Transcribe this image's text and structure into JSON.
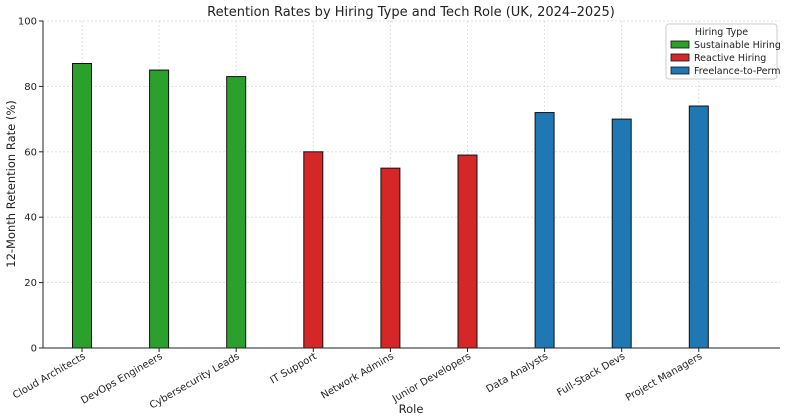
{
  "chart_data": {
    "type": "bar",
    "title": "Retention Rates by Hiring Type and Tech Role (UK, 2024–2025)",
    "xlabel": "Role",
    "ylabel": "12-Month Retention Rate (%)",
    "ylim": [
      0,
      100
    ],
    "yticks": [
      0,
      20,
      40,
      60,
      80,
      100
    ],
    "grid": true,
    "categories": [
      "Cloud Architects",
      "DevOps Engineers",
      "Cybersecurity Leads",
      "IT Support",
      "Network Admins",
      "Junior Developers",
      "Data Analysts",
      "Full-Stack Devs",
      "Project Managers"
    ],
    "legend": {
      "title": "Hiring Type",
      "position": "top-right"
    },
    "series": [
      {
        "name": "Sustainable Hiring",
        "color": "#2ca02c",
        "values": [
          87,
          85,
          83,
          null,
          null,
          null,
          null,
          null,
          null
        ]
      },
      {
        "name": "Reactive Hiring",
        "color": "#d62728",
        "values": [
          null,
          null,
          null,
          60,
          55,
          59,
          null,
          null,
          null
        ]
      },
      {
        "name": "Freelance-to-Perm",
        "color": "#1f77b4",
        "values": [
          null,
          null,
          null,
          null,
          null,
          null,
          72,
          70,
          74
        ]
      }
    ]
  }
}
